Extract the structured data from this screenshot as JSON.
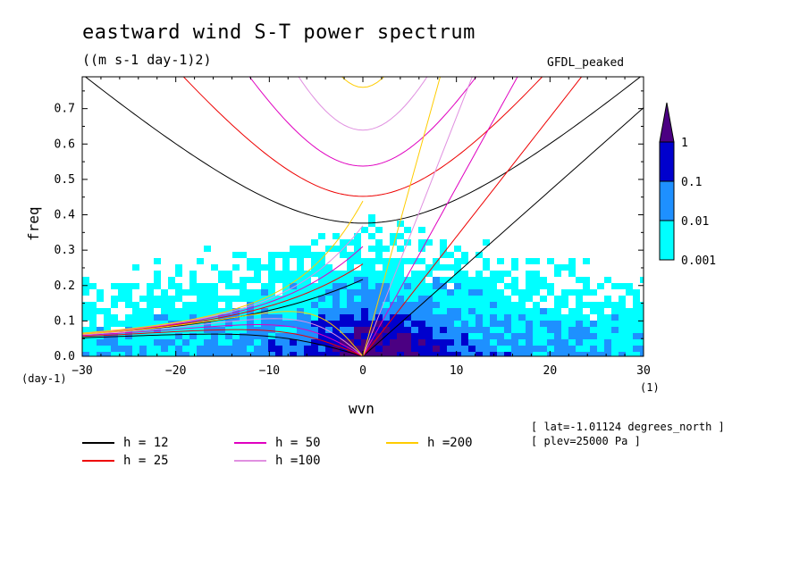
{
  "chart_data": {
    "type": "heatmap",
    "title": "eastward wind S-T power spectrum",
    "units": "((m s-1 day-1)2)",
    "dataset_label": "GFDL_peaked",
    "xlabel": "wvn",
    "ylabel": "freq",
    "x_unit": "(1)",
    "y_unit": "(day-1)",
    "xlim": [
      -30,
      30
    ],
    "ylim": [
      0,
      0.79
    ],
    "x_ticks": [
      "-30",
      "-20",
      "-10",
      "0",
      "10",
      "20",
      "30"
    ],
    "y_ticks": [
      "0.0",
      "0.1",
      "0.2",
      "0.3",
      "0.4",
      "0.5",
      "0.6",
      "0.7"
    ],
    "colorbar": {
      "levels": [
        "0.001",
        "0.01",
        "0.1",
        "1"
      ],
      "colors": [
        "#00ffff",
        "#1e90ff",
        "#0000cd",
        "#4b0082"
      ]
    },
    "dispersion_curves": [
      {
        "name": "h = 12",
        "h": 12,
        "color": "#000000"
      },
      {
        "name": "h = 25",
        "h": 25,
        "color": "#ee0000"
      },
      {
        "name": "h = 50",
        "h": 50,
        "color": "#e000c0"
      },
      {
        "name": "h =100",
        "h": 100,
        "color": "#e090e0"
      },
      {
        "name": "h =200",
        "h": 200,
        "color": "#ffcc00"
      }
    ],
    "annotations": [
      "[ lat=-1.01124 degrees_north ]",
      "[ plev=25000 Pa ]"
    ]
  }
}
